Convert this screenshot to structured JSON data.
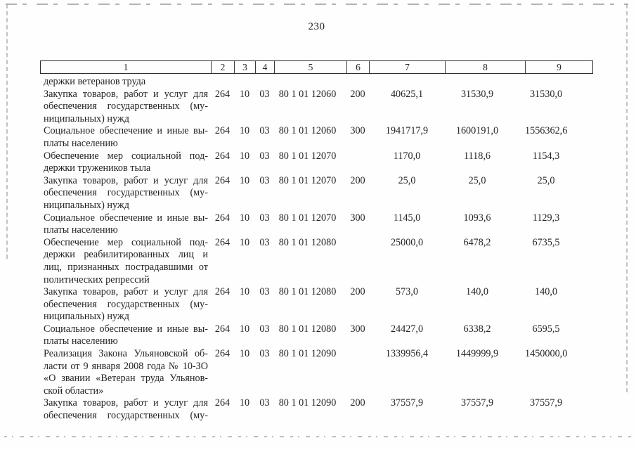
{
  "page": {
    "number": "230"
  },
  "table": {
    "header": [
      "1",
      "2",
      "3",
      "4",
      "5",
      "6",
      "7",
      "8",
      "9"
    ],
    "rows": [
      {
        "name_lines": [
          "держки ветеранов труда"
        ],
        "c2": "",
        "c3": "",
        "c4": "",
        "c5": "",
        "c6": "",
        "c7": "",
        "c8": "",
        "c9": ""
      },
      {
        "name_lines": [
          "Закупка товаров, работ и услуг для",
          "обеспечения государственных (му-",
          "ниципальных) нужд"
        ],
        "c2": "264",
        "c3": "10",
        "c4": "03",
        "c5": "80 1 01 12060",
        "c6": "200",
        "c7": "40625,1",
        "c8": "31530,9",
        "c9": "31530,0"
      },
      {
        "name_lines": [
          "Социальное обеспечение и иные вы-",
          "платы населению"
        ],
        "c2": "264",
        "c3": "10",
        "c4": "03",
        "c5": "80 1 01 12060",
        "c6": "300",
        "c7": "1941717,9",
        "c8": "1600191,0",
        "c9": "1556362,6"
      },
      {
        "name_lines": [
          "Обеспечение мер социальной под-",
          "держки тружеников тыла"
        ],
        "c2": "264",
        "c3": "10",
        "c4": "03",
        "c5": "80 1 01 12070",
        "c6": "",
        "c7": "1170,0",
        "c8": "1118,6",
        "c9": "1154,3"
      },
      {
        "name_lines": [
          "Закупка товаров, работ и услуг для",
          "обеспечения государственных (му-",
          "ниципальных) нужд"
        ],
        "c2": "264",
        "c3": "10",
        "c4": "03",
        "c5": "80 1 01 12070",
        "c6": "200",
        "c7": "25,0",
        "c8": "25,0",
        "c9": "25,0"
      },
      {
        "name_lines": [
          "Социальное обеспечение и иные вы-",
          "платы населению"
        ],
        "c2": "264",
        "c3": "10",
        "c4": "03",
        "c5": "80 1 01 12070",
        "c6": "300",
        "c7": "1145,0",
        "c8": "1093,6",
        "c9": "1129,3"
      },
      {
        "name_lines": [
          "Обеспечение мер социальной под-",
          "держки реабилитированных лиц и",
          "лиц, признанных пострадавшими от",
          "политических репрессий"
        ],
        "c2": "264",
        "c3": "10",
        "c4": "03",
        "c5": "80 1 01 12080",
        "c6": "",
        "c7": "25000,0",
        "c8": "6478,2",
        "c9": "6735,5"
      },
      {
        "name_lines": [
          "Закупка товаров, работ и услуг для",
          "обеспечения государственных (му-",
          "ниципальных) нужд"
        ],
        "c2": "264",
        "c3": "10",
        "c4": "03",
        "c5": "80 1 01 12080",
        "c6": "200",
        "c7": "573,0",
        "c8": "140,0",
        "c9": "140,0"
      },
      {
        "name_lines": [
          "Социальное обеспечение и иные вы-",
          "платы населению"
        ],
        "c2": "264",
        "c3": "10",
        "c4": "03",
        "c5": "80 1 01 12080",
        "c6": "300",
        "c7": "24427,0",
        "c8": "6338,2",
        "c9": "6595,5"
      },
      {
        "name_lines": [
          "Реализация Закона Ульяновской об-",
          "ласти от 9 января 2008 года № 10-ЗО",
          "«О звании «Ветеран труда Ульянов-",
          "ской области»"
        ],
        "c2": "264",
        "c3": "10",
        "c4": "03",
        "c5": "80 1 01 12090",
        "c6": "",
        "c7": "1339956,4",
        "c8": "1449999,9",
        "c9": "1450000,0"
      },
      {
        "name_lines": [
          "Закупка товаров, работ и услуг для",
          "обеспечения государственных (му-"
        ],
        "justify_last": true,
        "c2": "264",
        "c3": "10",
        "c4": "03",
        "c5": "80 1 01 12090",
        "c6": "200",
        "c7": "37557,9",
        "c8": "37557,9",
        "c9": "37557,9"
      }
    ]
  }
}
